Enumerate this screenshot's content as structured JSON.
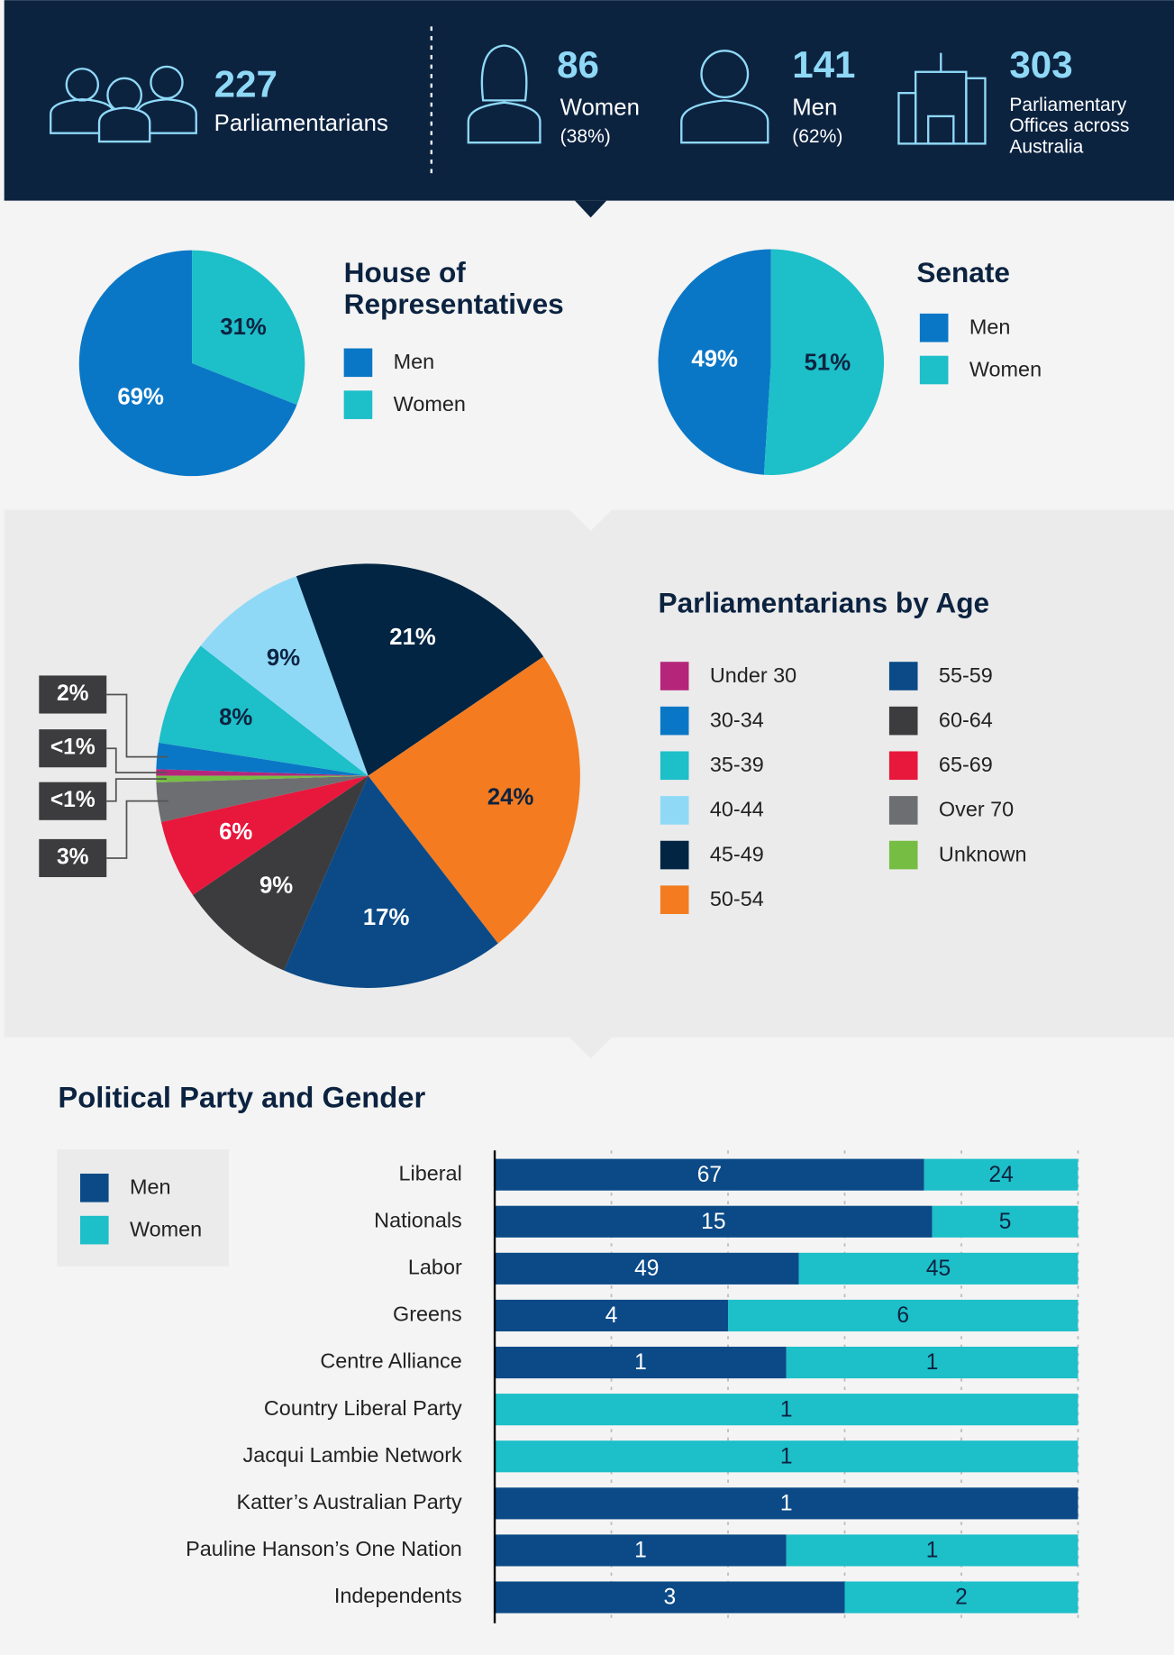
{
  "header": {
    "stats": [
      {
        "value": 227,
        "label": "Parliamentarians"
      },
      {
        "value": 86,
        "label": "Women",
        "share": "(38%)"
      },
      {
        "value": 141,
        "label": "Men",
        "share": "(62%)"
      },
      {
        "value": 303,
        "label_lines": [
          "Parliamentary",
          "Offices across",
          "Australia"
        ]
      }
    ]
  },
  "chart_data": [
    {
      "type": "pie",
      "title_lines": [
        "House of",
        "Representatives"
      ],
      "categories": [
        "Men",
        "Women"
      ],
      "values": [
        69,
        31
      ],
      "value_labels": [
        "69%",
        "31%"
      ],
      "colors": [
        "#0a77c6",
        "#1dbfc9"
      ]
    },
    {
      "type": "pie",
      "title_lines": [
        "Senate"
      ],
      "categories": [
        "Men",
        "Women"
      ],
      "values": [
        49,
        51
      ],
      "value_labels": [
        "49%",
        "51%"
      ],
      "colors": [
        "#0a77c6",
        "#1dbfc9"
      ]
    },
    {
      "type": "pie",
      "title_lines": [
        "Parliamentarians by Age"
      ],
      "categories": [
        "Under 30",
        "30-34",
        "35-39",
        "40-44",
        "45-49",
        "50-54",
        "55-59",
        "60-64",
        "65-69",
        "Over 70",
        "Unknown"
      ],
      "values": [
        0.5,
        2,
        8,
        9,
        21,
        24,
        17,
        9,
        6,
        3,
        0.5
      ],
      "value_labels": [
        "<1%",
        "2%",
        "8%",
        "9%",
        "21%",
        "24%",
        "17%",
        "9%",
        "6%",
        "3%",
        "<1%"
      ],
      "colors": [
        "#b5267b",
        "#0a77c6",
        "#1dbfc9",
        "#8fd9f7",
        "#012543",
        "#f47b20",
        "#0b4a87",
        "#3c3c3e",
        "#e8173c",
        "#6d6e71",
        "#76bd43"
      ]
    },
    {
      "type": "stacked_bar",
      "title": "Political Party and Gender",
      "stacking": "percent",
      "orientation": "horizontal",
      "categories": [
        "Liberal",
        "Nationals",
        "Labor",
        "Greens",
        "Centre Alliance",
        "Country Liberal Party",
        "Jacqui Lambie Network",
        "Katter’s Australian Party",
        "Pauline Hanson’s One Nation",
        "Independents"
      ],
      "series": [
        {
          "name": "Men",
          "color": "#0b4a87",
          "values": [
            67,
            15,
            49,
            4,
            1,
            null,
            null,
            1,
            1,
            3
          ]
        },
        {
          "name": "Women",
          "color": "#1dbfc9",
          "values": [
            24,
            5,
            45,
            6,
            1,
            1,
            1,
            null,
            1,
            2
          ]
        }
      ],
      "xlim": [
        0,
        100
      ],
      "xticks": [
        0,
        20,
        40,
        60,
        80,
        100
      ],
      "grid": true
    }
  ]
}
